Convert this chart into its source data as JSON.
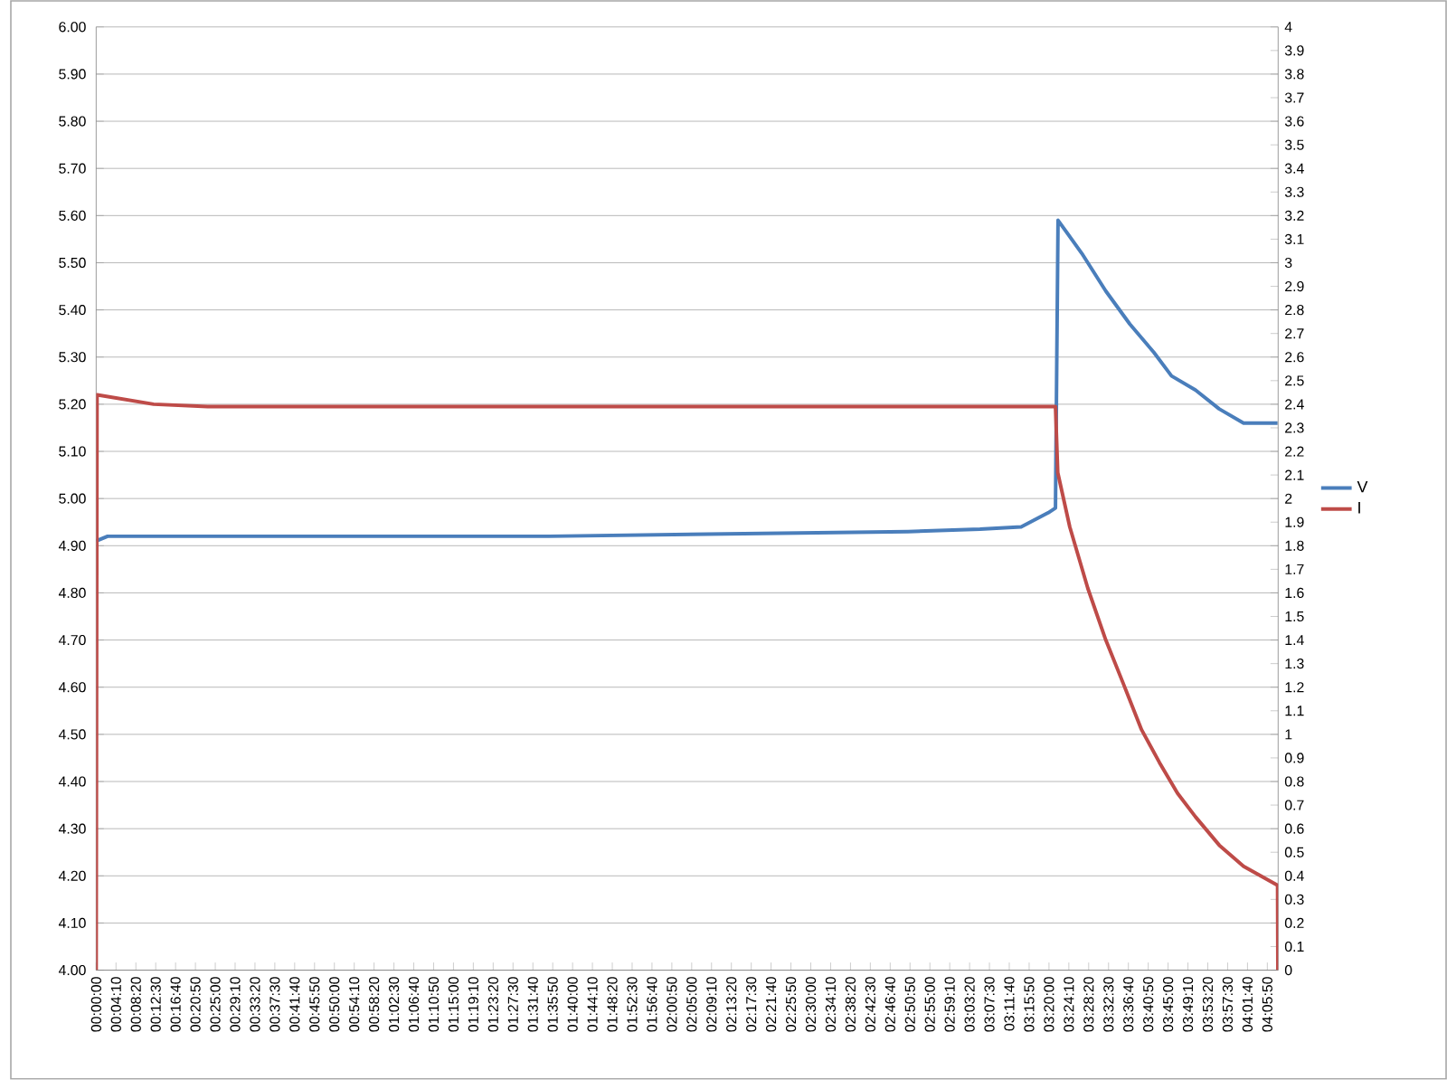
{
  "chart_data": {
    "type": "line",
    "xlim": [
      0,
      4.135
    ],
    "xticks": [
      {
        "value": 0,
        "label": "00:00:00"
      },
      {
        "value": 0.0694,
        "label": "00:04:10"
      },
      {
        "value": 0.1389,
        "label": "00:08:20"
      },
      {
        "value": 0.2083,
        "label": "00:12:30"
      },
      {
        "value": 0.2778,
        "label": "00:16:40"
      },
      {
        "value": 0.3472,
        "label": "00:20:50"
      },
      {
        "value": 0.4167,
        "label": "00:25:00"
      },
      {
        "value": 0.4861,
        "label": "00:29:10"
      },
      {
        "value": 0.5556,
        "label": "00:33:20"
      },
      {
        "value": 0.625,
        "label": "00:37:30"
      },
      {
        "value": 0.6944,
        "label": "00:41:40"
      },
      {
        "value": 0.7639,
        "label": "00:45:50"
      },
      {
        "value": 0.8333,
        "label": "00:50:00"
      },
      {
        "value": 0.9028,
        "label": "00:54:10"
      },
      {
        "value": 0.9722,
        "label": "00:58:20"
      },
      {
        "value": 1.0417,
        "label": "01:02:30"
      },
      {
        "value": 1.1111,
        "label": "01:06:40"
      },
      {
        "value": 1.1806,
        "label": "01:10:50"
      },
      {
        "value": 1.25,
        "label": "01:15:00"
      },
      {
        "value": 1.3194,
        "label": "01:19:10"
      },
      {
        "value": 1.3889,
        "label": "01:23:20"
      },
      {
        "value": 1.4583,
        "label": "01:27:30"
      },
      {
        "value": 1.5278,
        "label": "01:31:40"
      },
      {
        "value": 1.5972,
        "label": "01:35:50"
      },
      {
        "value": 1.6667,
        "label": "01:40:00"
      },
      {
        "value": 1.7361,
        "label": "01:44:10"
      },
      {
        "value": 1.8056,
        "label": "01:48:20"
      },
      {
        "value": 1.875,
        "label": "01:52:30"
      },
      {
        "value": 1.9444,
        "label": "01:56:40"
      },
      {
        "value": 2.0139,
        "label": "02:00:50"
      },
      {
        "value": 2.0833,
        "label": "02:05:00"
      },
      {
        "value": 2.1528,
        "label": "02:09:10"
      },
      {
        "value": 2.2222,
        "label": "02:13:20"
      },
      {
        "value": 2.2917,
        "label": "02:17:30"
      },
      {
        "value": 2.3611,
        "label": "02:21:40"
      },
      {
        "value": 2.4306,
        "label": "02:25:50"
      },
      {
        "value": 2.5,
        "label": "02:30:00"
      },
      {
        "value": 2.5694,
        "label": "02:34:10"
      },
      {
        "value": 2.6389,
        "label": "02:38:20"
      },
      {
        "value": 2.7083,
        "label": "02:42:30"
      },
      {
        "value": 2.7778,
        "label": "02:46:40"
      },
      {
        "value": 2.8472,
        "label": "02:50:50"
      },
      {
        "value": 2.9167,
        "label": "02:55:00"
      },
      {
        "value": 2.9861,
        "label": "02:59:10"
      },
      {
        "value": 3.0556,
        "label": "03:03:20"
      },
      {
        "value": 3.125,
        "label": "03:07:30"
      },
      {
        "value": 3.1944,
        "label": "03:11:40"
      },
      {
        "value": 3.2639,
        "label": "03:15:50"
      },
      {
        "value": 3.3333,
        "label": "03:20:00"
      },
      {
        "value": 3.4028,
        "label": "03:24:10"
      },
      {
        "value": 3.4722,
        "label": "03:28:20"
      },
      {
        "value": 3.5417,
        "label": "03:32:30"
      },
      {
        "value": 3.6111,
        "label": "03:36:40"
      },
      {
        "value": 3.6806,
        "label": "03:40:50"
      },
      {
        "value": 3.75,
        "label": "03:45:00"
      },
      {
        "value": 3.8194,
        "label": "03:49:10"
      },
      {
        "value": 3.8889,
        "label": "03:53:20"
      },
      {
        "value": 3.9583,
        "label": "03:57:30"
      },
      {
        "value": 4.0278,
        "label": "04:01:40"
      },
      {
        "value": 4.0972,
        "label": "04:05:50"
      }
    ],
    "ylim": [
      4,
      6
    ],
    "yticks": [
      {
        "value": 4,
        "label": "4.00"
      },
      {
        "value": 4.1,
        "label": "4.10"
      },
      {
        "value": 4.2,
        "label": "4.20"
      },
      {
        "value": 4.3,
        "label": "4.30"
      },
      {
        "value": 4.4,
        "label": "4.40"
      },
      {
        "value": 4.5,
        "label": "4.50"
      },
      {
        "value": 4.6,
        "label": "4.60"
      },
      {
        "value": 4.7,
        "label": "4.70"
      },
      {
        "value": 4.8,
        "label": "4.80"
      },
      {
        "value": 4.9,
        "label": "4.90"
      },
      {
        "value": 5,
        "label": "5.00"
      },
      {
        "value": 5.1,
        "label": "5.10"
      },
      {
        "value": 5.2,
        "label": "5.20"
      },
      {
        "value": 5.3,
        "label": "5.30"
      },
      {
        "value": 5.4,
        "label": "5.40"
      },
      {
        "value": 5.5,
        "label": "5.50"
      },
      {
        "value": 5.6,
        "label": "5.60"
      },
      {
        "value": 5.7,
        "label": "5.70"
      },
      {
        "value": 5.8,
        "label": "5.80"
      },
      {
        "value": 5.9,
        "label": "5.90"
      },
      {
        "value": 6,
        "label": "6.00"
      }
    ],
    "y2lim": [
      0,
      4
    ],
    "y2ticks": [
      0,
      0.1,
      0.2,
      0.3,
      0.4,
      0.5,
      0.6,
      0.7,
      0.8,
      0.9,
      1,
      1.1,
      1.2,
      1.3,
      1.4,
      1.5,
      1.6,
      1.7,
      1.8,
      1.9,
      2,
      2.1,
      2.2,
      2.3,
      2.4,
      2.5,
      2.6,
      2.7,
      2.8,
      2.9,
      3,
      3.1,
      3.2,
      3.3,
      3.4,
      3.5,
      3.6,
      3.7,
      3.8,
      3.9,
      4
    ],
    "grid": "y",
    "legend": "right",
    "marker": "none",
    "series": [
      {
        "name": "V",
        "color": "#4a7ebb",
        "x": [
          0,
          0.04,
          0.327,
          1.584,
          2.212,
          2.84,
          3.092,
          3.236,
          3.331,
          3.356,
          3.365,
          3.448,
          3.532,
          3.616,
          3.7,
          3.762,
          3.846,
          3.929,
          4.014,
          4.133
        ],
        "values": [
          4.91,
          4.92,
          4.92,
          4.92,
          4.925,
          4.93,
          4.935,
          4.94,
          4.97,
          4.98,
          5.59,
          5.52,
          5.44,
          5.37,
          5.31,
          5.26,
          5.23,
          5.19,
          5.16,
          5.16
        ]
      },
      {
        "name": "I",
        "color": "#be4b48",
        "axis": "y2",
        "x": [
          0,
          0.003,
          0.201,
          0.39,
          3.356,
          3.364,
          3.406,
          3.469,
          3.532,
          3.595,
          3.657,
          3.72,
          3.783,
          3.846,
          3.929,
          4.014,
          4.133,
          4.134
        ],
        "values": [
          0,
          2.44,
          2.4,
          2.39,
          2.39,
          2.11,
          1.88,
          1.62,
          1.4,
          1.21,
          1.02,
          0.88,
          0.75,
          0.65,
          0.53,
          0.44,
          0.36,
          0
        ]
      }
    ]
  }
}
